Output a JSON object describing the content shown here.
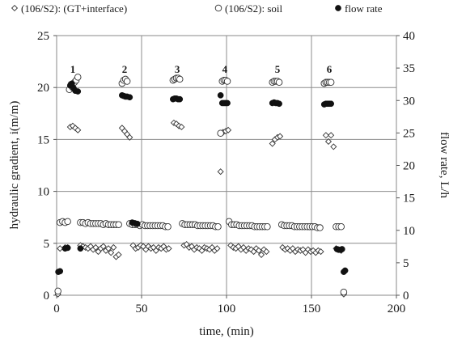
{
  "chart_data": {
    "type": "scatter",
    "xlabel": "time, (min)",
    "ylabel_left": "hydraulic gradient, i(m/m)",
    "ylabel_right": "flow rate, L/h",
    "xlim": [
      0,
      200
    ],
    "ylim_left": [
      0,
      25
    ],
    "ylim_right": [
      0,
      40
    ],
    "x_ticks": [
      0,
      50,
      100,
      150,
      200
    ],
    "y_left_ticks": [
      0,
      5,
      10,
      15,
      20,
      25
    ],
    "y_right_ticks": [
      0,
      5,
      10,
      15,
      20,
      25,
      30,
      35,
      40
    ],
    "grid": true,
    "legend_position": "top",
    "series": [
      {
        "name": "(106/S2): (GT+interface)",
        "marker": "diamond-open",
        "axis": "left",
        "points": [
          [
            0.8,
            0.1
          ],
          [
            2,
            4.5
          ],
          [
            5,
            4.6
          ],
          [
            6.5,
            4.6
          ],
          [
            8,
            16.2
          ],
          [
            9.5,
            16.3
          ],
          [
            11,
            16.1
          ],
          [
            12.5,
            15.9
          ],
          [
            14,
            4.8
          ],
          [
            15.5,
            4.7
          ],
          [
            17,
            4.6
          ],
          [
            18.5,
            4.5
          ],
          [
            20,
            4.7
          ],
          [
            21.5,
            4.4
          ],
          [
            23,
            4.6
          ],
          [
            24.5,
            4.2
          ],
          [
            26,
            4.5
          ],
          [
            27.5,
            4.7
          ],
          [
            29,
            4.3
          ],
          [
            30.5,
            4.5
          ],
          [
            32,
            4.1
          ],
          [
            33.5,
            4.6
          ],
          [
            35,
            3.7
          ],
          [
            36.5,
            3.9
          ],
          [
            38.5,
            16.1
          ],
          [
            40,
            15.8
          ],
          [
            41.5,
            15.5
          ],
          [
            43,
            15.2
          ],
          [
            45,
            4.8
          ],
          [
            46.5,
            4.5
          ],
          [
            48,
            4.6
          ],
          [
            49.5,
            4.8
          ],
          [
            51,
            4.7
          ],
          [
            52.5,
            4.4
          ],
          [
            54,
            4.7
          ],
          [
            55.5,
            4.5
          ],
          [
            57,
            4.6
          ],
          [
            58.5,
            4.3
          ],
          [
            60,
            4.6
          ],
          [
            61.5,
            4.5
          ],
          [
            63,
            4.7
          ],
          [
            64.5,
            4.4
          ],
          [
            66,
            4.5
          ],
          [
            69,
            16.6
          ],
          [
            70.5,
            16.5
          ],
          [
            72,
            16.3
          ],
          [
            73.5,
            16.2
          ],
          [
            75,
            4.8
          ],
          [
            76.5,
            4.9
          ],
          [
            78,
            4.6
          ],
          [
            79.5,
            4.7
          ],
          [
            81,
            4.4
          ],
          [
            82.5,
            4.6
          ],
          [
            84,
            4.5
          ],
          [
            85.5,
            4.3
          ],
          [
            87,
            4.6
          ],
          [
            88.5,
            4.5
          ],
          [
            90,
            4.4
          ],
          [
            91.5,
            4.6
          ],
          [
            93,
            4.3
          ],
          [
            94.5,
            4.5
          ],
          [
            96.5,
            11.9
          ],
          [
            98,
            15.7
          ],
          [
            99.5,
            15.8
          ],
          [
            101,
            15.9
          ],
          [
            102.5,
            4.8
          ],
          [
            104,
            4.6
          ],
          [
            105.5,
            4.5
          ],
          [
            107,
            4.7
          ],
          [
            108.5,
            4.4
          ],
          [
            110,
            4.6
          ],
          [
            111.5,
            4.3
          ],
          [
            113,
            4.5
          ],
          [
            114.5,
            4.4
          ],
          [
            116,
            4.2
          ],
          [
            117.5,
            4.5
          ],
          [
            119,
            4.3
          ],
          [
            120.5,
            3.9
          ],
          [
            122,
            4.4
          ],
          [
            123.5,
            4.2
          ],
          [
            127,
            14.6
          ],
          [
            128.5,
            15.0
          ],
          [
            130,
            15.2
          ],
          [
            131.5,
            15.3
          ],
          [
            133,
            4.6
          ],
          [
            134.5,
            4.4
          ],
          [
            136,
            4.5
          ],
          [
            137.5,
            4.3
          ],
          [
            139,
            4.5
          ],
          [
            140.5,
            4.2
          ],
          [
            142,
            4.4
          ],
          [
            143.5,
            4.3
          ],
          [
            145,
            4.4
          ],
          [
            146.5,
            4.1
          ],
          [
            148,
            4.4
          ],
          [
            149.5,
            4.2
          ],
          [
            151,
            4.3
          ],
          [
            152.5,
            4.1
          ],
          [
            154,
            4.3
          ],
          [
            155.5,
            4.2
          ],
          [
            158.5,
            15.4
          ],
          [
            160,
            14.8
          ],
          [
            161.5,
            15.4
          ],
          [
            163,
            14.3
          ],
          [
            164.5,
            4.5
          ],
          [
            166,
            4.4
          ],
          [
            167.5,
            4.3
          ],
          [
            169,
            0.1
          ]
        ]
      },
      {
        "name": "(106/S2): soil",
        "marker": "circle-open",
        "axis": "left",
        "points": [
          [
            0.8,
            0.4
          ],
          [
            2,
            7.0
          ],
          [
            3.5,
            7.1
          ],
          [
            5,
            7.0
          ],
          [
            6.5,
            7.1
          ],
          [
            7.5,
            19.8
          ],
          [
            8.5,
            20.3
          ],
          [
            9.5,
            20.0
          ],
          [
            10.5,
            20.5
          ],
          [
            11.5,
            20.7
          ],
          [
            12.5,
            21.0
          ],
          [
            14,
            7.0
          ],
          [
            15.5,
            7.0
          ],
          [
            17,
            6.9
          ],
          [
            18.5,
            7.0
          ],
          [
            20,
            6.9
          ],
          [
            21.5,
            6.9
          ],
          [
            23,
            6.9
          ],
          [
            24.5,
            6.9
          ],
          [
            26,
            6.9
          ],
          [
            27.5,
            6.8
          ],
          [
            29,
            6.9
          ],
          [
            30.5,
            6.8
          ],
          [
            32,
            6.8
          ],
          [
            33.5,
            6.8
          ],
          [
            35,
            6.8
          ],
          [
            36.5,
            6.8
          ],
          [
            38.5,
            20.4
          ],
          [
            39.5,
            20.7
          ],
          [
            40.5,
            20.8
          ],
          [
            41.5,
            20.6
          ],
          [
            43,
            6.9
          ],
          [
            44.5,
            6.8
          ],
          [
            46,
            6.8
          ],
          [
            47.5,
            6.8
          ],
          [
            49,
            6.7
          ],
          [
            50.5,
            6.8
          ],
          [
            52,
            6.7
          ],
          [
            53.5,
            6.7
          ],
          [
            55,
            6.7
          ],
          [
            56.5,
            6.7
          ],
          [
            58,
            6.7
          ],
          [
            59.5,
            6.7
          ],
          [
            61,
            6.7
          ],
          [
            62.5,
            6.7
          ],
          [
            64,
            6.6
          ],
          [
            65.5,
            6.6
          ],
          [
            68.5,
            20.7
          ],
          [
            69.5,
            20.8
          ],
          [
            70.5,
            20.9
          ],
          [
            71.5,
            20.9
          ],
          [
            72.5,
            20.8
          ],
          [
            74,
            6.9
          ],
          [
            75.5,
            6.8
          ],
          [
            77,
            6.8
          ],
          [
            78.5,
            6.8
          ],
          [
            80,
            6.8
          ],
          [
            81.5,
            6.8
          ],
          [
            83,
            6.7
          ],
          [
            84.5,
            6.7
          ],
          [
            86,
            6.7
          ],
          [
            87.5,
            6.7
          ],
          [
            89,
            6.7
          ],
          [
            90.5,
            6.7
          ],
          [
            92,
            6.7
          ],
          [
            93.5,
            6.6
          ],
          [
            95,
            6.6
          ],
          [
            96.5,
            15.6
          ],
          [
            97.5,
            20.6
          ],
          [
            98.5,
            20.7
          ],
          [
            99.5,
            20.7
          ],
          [
            100.5,
            20.6
          ],
          [
            101.5,
            7.1
          ],
          [
            103,
            6.8
          ],
          [
            104.5,
            6.8
          ],
          [
            106,
            6.8
          ],
          [
            107.5,
            6.7
          ],
          [
            109,
            6.7
          ],
          [
            110.5,
            6.7
          ],
          [
            112,
            6.7
          ],
          [
            113.5,
            6.7
          ],
          [
            115,
            6.7
          ],
          [
            116.5,
            6.6
          ],
          [
            118,
            6.6
          ],
          [
            119.5,
            6.6
          ],
          [
            121,
            6.6
          ],
          [
            122.5,
            6.6
          ],
          [
            124,
            6.6
          ],
          [
            127,
            20.5
          ],
          [
            128,
            20.6
          ],
          [
            129,
            20.6
          ],
          [
            130,
            20.6
          ],
          [
            131,
            20.5
          ],
          [
            132.5,
            6.8
          ],
          [
            134,
            6.7
          ],
          [
            135.5,
            6.7
          ],
          [
            137,
            6.7
          ],
          [
            138.5,
            6.7
          ],
          [
            140,
            6.6
          ],
          [
            141.5,
            6.6
          ],
          [
            143,
            6.6
          ],
          [
            144.5,
            6.6
          ],
          [
            146,
            6.6
          ],
          [
            147.5,
            6.6
          ],
          [
            149,
            6.6
          ],
          [
            150.5,
            6.6
          ],
          [
            152,
            6.6
          ],
          [
            153.5,
            6.5
          ],
          [
            155,
            6.5
          ],
          [
            157.5,
            20.4
          ],
          [
            158.5,
            20.5
          ],
          [
            159.5,
            20.5
          ],
          [
            160.5,
            20.5
          ],
          [
            161.5,
            20.5
          ],
          [
            164.5,
            6.6
          ],
          [
            166,
            6.6
          ],
          [
            167.5,
            6.6
          ],
          [
            169,
            0.3
          ]
        ]
      },
      {
        "name": "flow rate",
        "marker": "circle-filled",
        "axis": "right",
        "points": [
          [
            1,
            3.6
          ],
          [
            2,
            3.7
          ],
          [
            5,
            7.2
          ],
          [
            6.5,
            7.3
          ],
          [
            8,
            32.3
          ],
          [
            9,
            32.6
          ],
          [
            10,
            31.9
          ],
          [
            11,
            31.5
          ],
          [
            12.5,
            31.4
          ],
          [
            14,
            7.2
          ],
          [
            38.5,
            30.8
          ],
          [
            39.5,
            30.7
          ],
          [
            40.5,
            30.6
          ],
          [
            41.5,
            30.6
          ],
          [
            43,
            30.5
          ],
          [
            44.5,
            11.2
          ],
          [
            46,
            11.1
          ],
          [
            47.5,
            11.0
          ],
          [
            68.5,
            30.2
          ],
          [
            69.5,
            30.3
          ],
          [
            70.5,
            30.3
          ],
          [
            71.5,
            30.2
          ],
          [
            72.5,
            30.2
          ],
          [
            96.5,
            30.8
          ],
          [
            97.5,
            29.6
          ],
          [
            98.5,
            29.6
          ],
          [
            99.5,
            29.6
          ],
          [
            100.5,
            29.6
          ],
          [
            127,
            29.6
          ],
          [
            128,
            29.7
          ],
          [
            129,
            29.6
          ],
          [
            130,
            29.6
          ],
          [
            131,
            29.5
          ],
          [
            157.5,
            29.4
          ],
          [
            158.5,
            29.5
          ],
          [
            159.5,
            29.5
          ],
          [
            160.5,
            29.5
          ],
          [
            161.5,
            29.5
          ],
          [
            165,
            7.1
          ],
          [
            166,
            7.0
          ],
          [
            167,
            7.0
          ],
          [
            168,
            7.1
          ],
          [
            169,
            3.6
          ],
          [
            169.8,
            3.8
          ]
        ]
      }
    ],
    "annotations": [
      {
        "text": "1",
        "x": 9.5,
        "y": 21.8
      },
      {
        "text": "2",
        "x": 40,
        "y": 21.8
      },
      {
        "text": "3",
        "x": 71,
        "y": 21.8
      },
      {
        "text": "4",
        "x": 99,
        "y": 21.8
      },
      {
        "text": "5",
        "x": 130,
        "y": 21.8
      },
      {
        "text": "6",
        "x": 160.5,
        "y": 21.8
      }
    ]
  }
}
